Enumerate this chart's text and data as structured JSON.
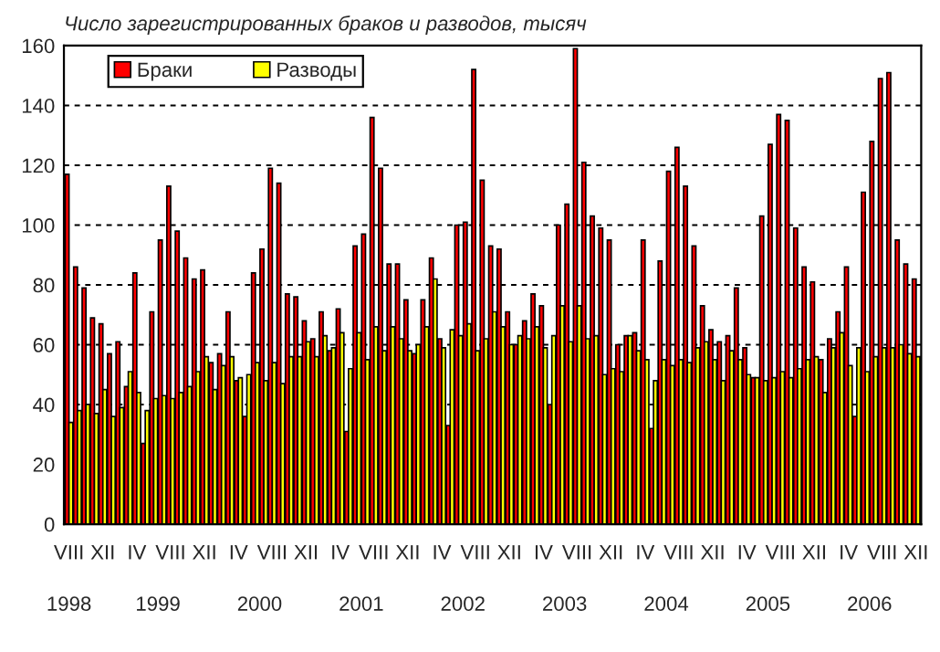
{
  "chart_data": {
    "type": "bar",
    "title": "Число зарегистрированных браков и разводов, тысяч",
    "categories": [
      "VIII",
      null,
      null,
      null,
      "XII",
      null,
      null,
      null,
      "IV",
      null,
      null,
      null,
      "VIII",
      null,
      null,
      null,
      "XII",
      null,
      null,
      null,
      "IV",
      null,
      null,
      null,
      "VIII",
      null,
      null,
      null,
      "XII",
      null,
      null,
      null,
      "IV",
      null,
      null,
      null,
      "VIII",
      null,
      null,
      null,
      "XII",
      null,
      null,
      null,
      "IV",
      null,
      null,
      null,
      "VIII",
      null,
      null,
      null,
      "XII",
      null,
      null,
      null,
      "IV",
      null,
      null,
      null,
      "VIII",
      null,
      null,
      null,
      "XII",
      null,
      null,
      null,
      "IV",
      null,
      null,
      null,
      "VIII",
      null,
      null,
      null,
      "XII",
      null,
      null,
      null,
      "IV",
      null,
      null,
      null,
      "VIII",
      null,
      null,
      null,
      "XII",
      null,
      null,
      null,
      "IV",
      null,
      null,
      null,
      "VIII",
      null,
      null,
      null,
      "XII"
    ],
    "series": [
      {
        "name": "Браки",
        "color": "#ff0000",
        "values": [
          117,
          86,
          79,
          69,
          67,
          57,
          61,
          46,
          84,
          27,
          71,
          95,
          113,
          98,
          89,
          82,
          85,
          54,
          57,
          71,
          48,
          36,
          84,
          92,
          119,
          114,
          77,
          76,
          68,
          62,
          71,
          58,
          72,
          31,
          93,
          97,
          136,
          119,
          87,
          87,
          75,
          57,
          75,
          89,
          62,
          33,
          100,
          101,
          152,
          115,
          93,
          92,
          71,
          60,
          68,
          77,
          73,
          40,
          100,
          107,
          159,
          121,
          103,
          99,
          95,
          60,
          63,
          64,
          95,
          32,
          88,
          118,
          126,
          113,
          93,
          73,
          65,
          61,
          63,
          79,
          59,
          49,
          103,
          127,
          137,
          135,
          99,
          86,
          81,
          55,
          62,
          71,
          86,
          36,
          111,
          128,
          149,
          151,
          95,
          87,
          82
        ]
      },
      {
        "name": "Разводы",
        "color": "#ffff00",
        "values": [
          34,
          38,
          40,
          37,
          45,
          36,
          39,
          51,
          44,
          38,
          42,
          43,
          42,
          44,
          46,
          51,
          56,
          45,
          53,
          56,
          49,
          50,
          54,
          48,
          54,
          47,
          56,
          56,
          61,
          56,
          63,
          59,
          64,
          52,
          64,
          55,
          66,
          58,
          66,
          62,
          58,
          60,
          66,
          82,
          59,
          65,
          63,
          67,
          58,
          62,
          71,
          66,
          60,
          63,
          62,
          66,
          59,
          63,
          73,
          61,
          73,
          62,
          63,
          50,
          52,
          51,
          63,
          58,
          55,
          48,
          55,
          53,
          55,
          54,
          59,
          61,
          55,
          48,
          58,
          55,
          50,
          49,
          48,
          49,
          51,
          49,
          52,
          55,
          56,
          44,
          59,
          64,
          53,
          59,
          51,
          56,
          59,
          59,
          60,
          57,
          56
        ]
      }
    ],
    "ylim": [
      0,
      160
    ],
    "yticks": [
      0,
      20,
      40,
      60,
      80,
      100,
      120,
      140,
      160
    ],
    "grid": "y",
    "legend": "top left",
    "annotations": [
      "1998",
      "1999",
      "2000",
      "2001",
      "2002",
      "2003",
      "2004",
      "2005",
      "2006"
    ]
  }
}
